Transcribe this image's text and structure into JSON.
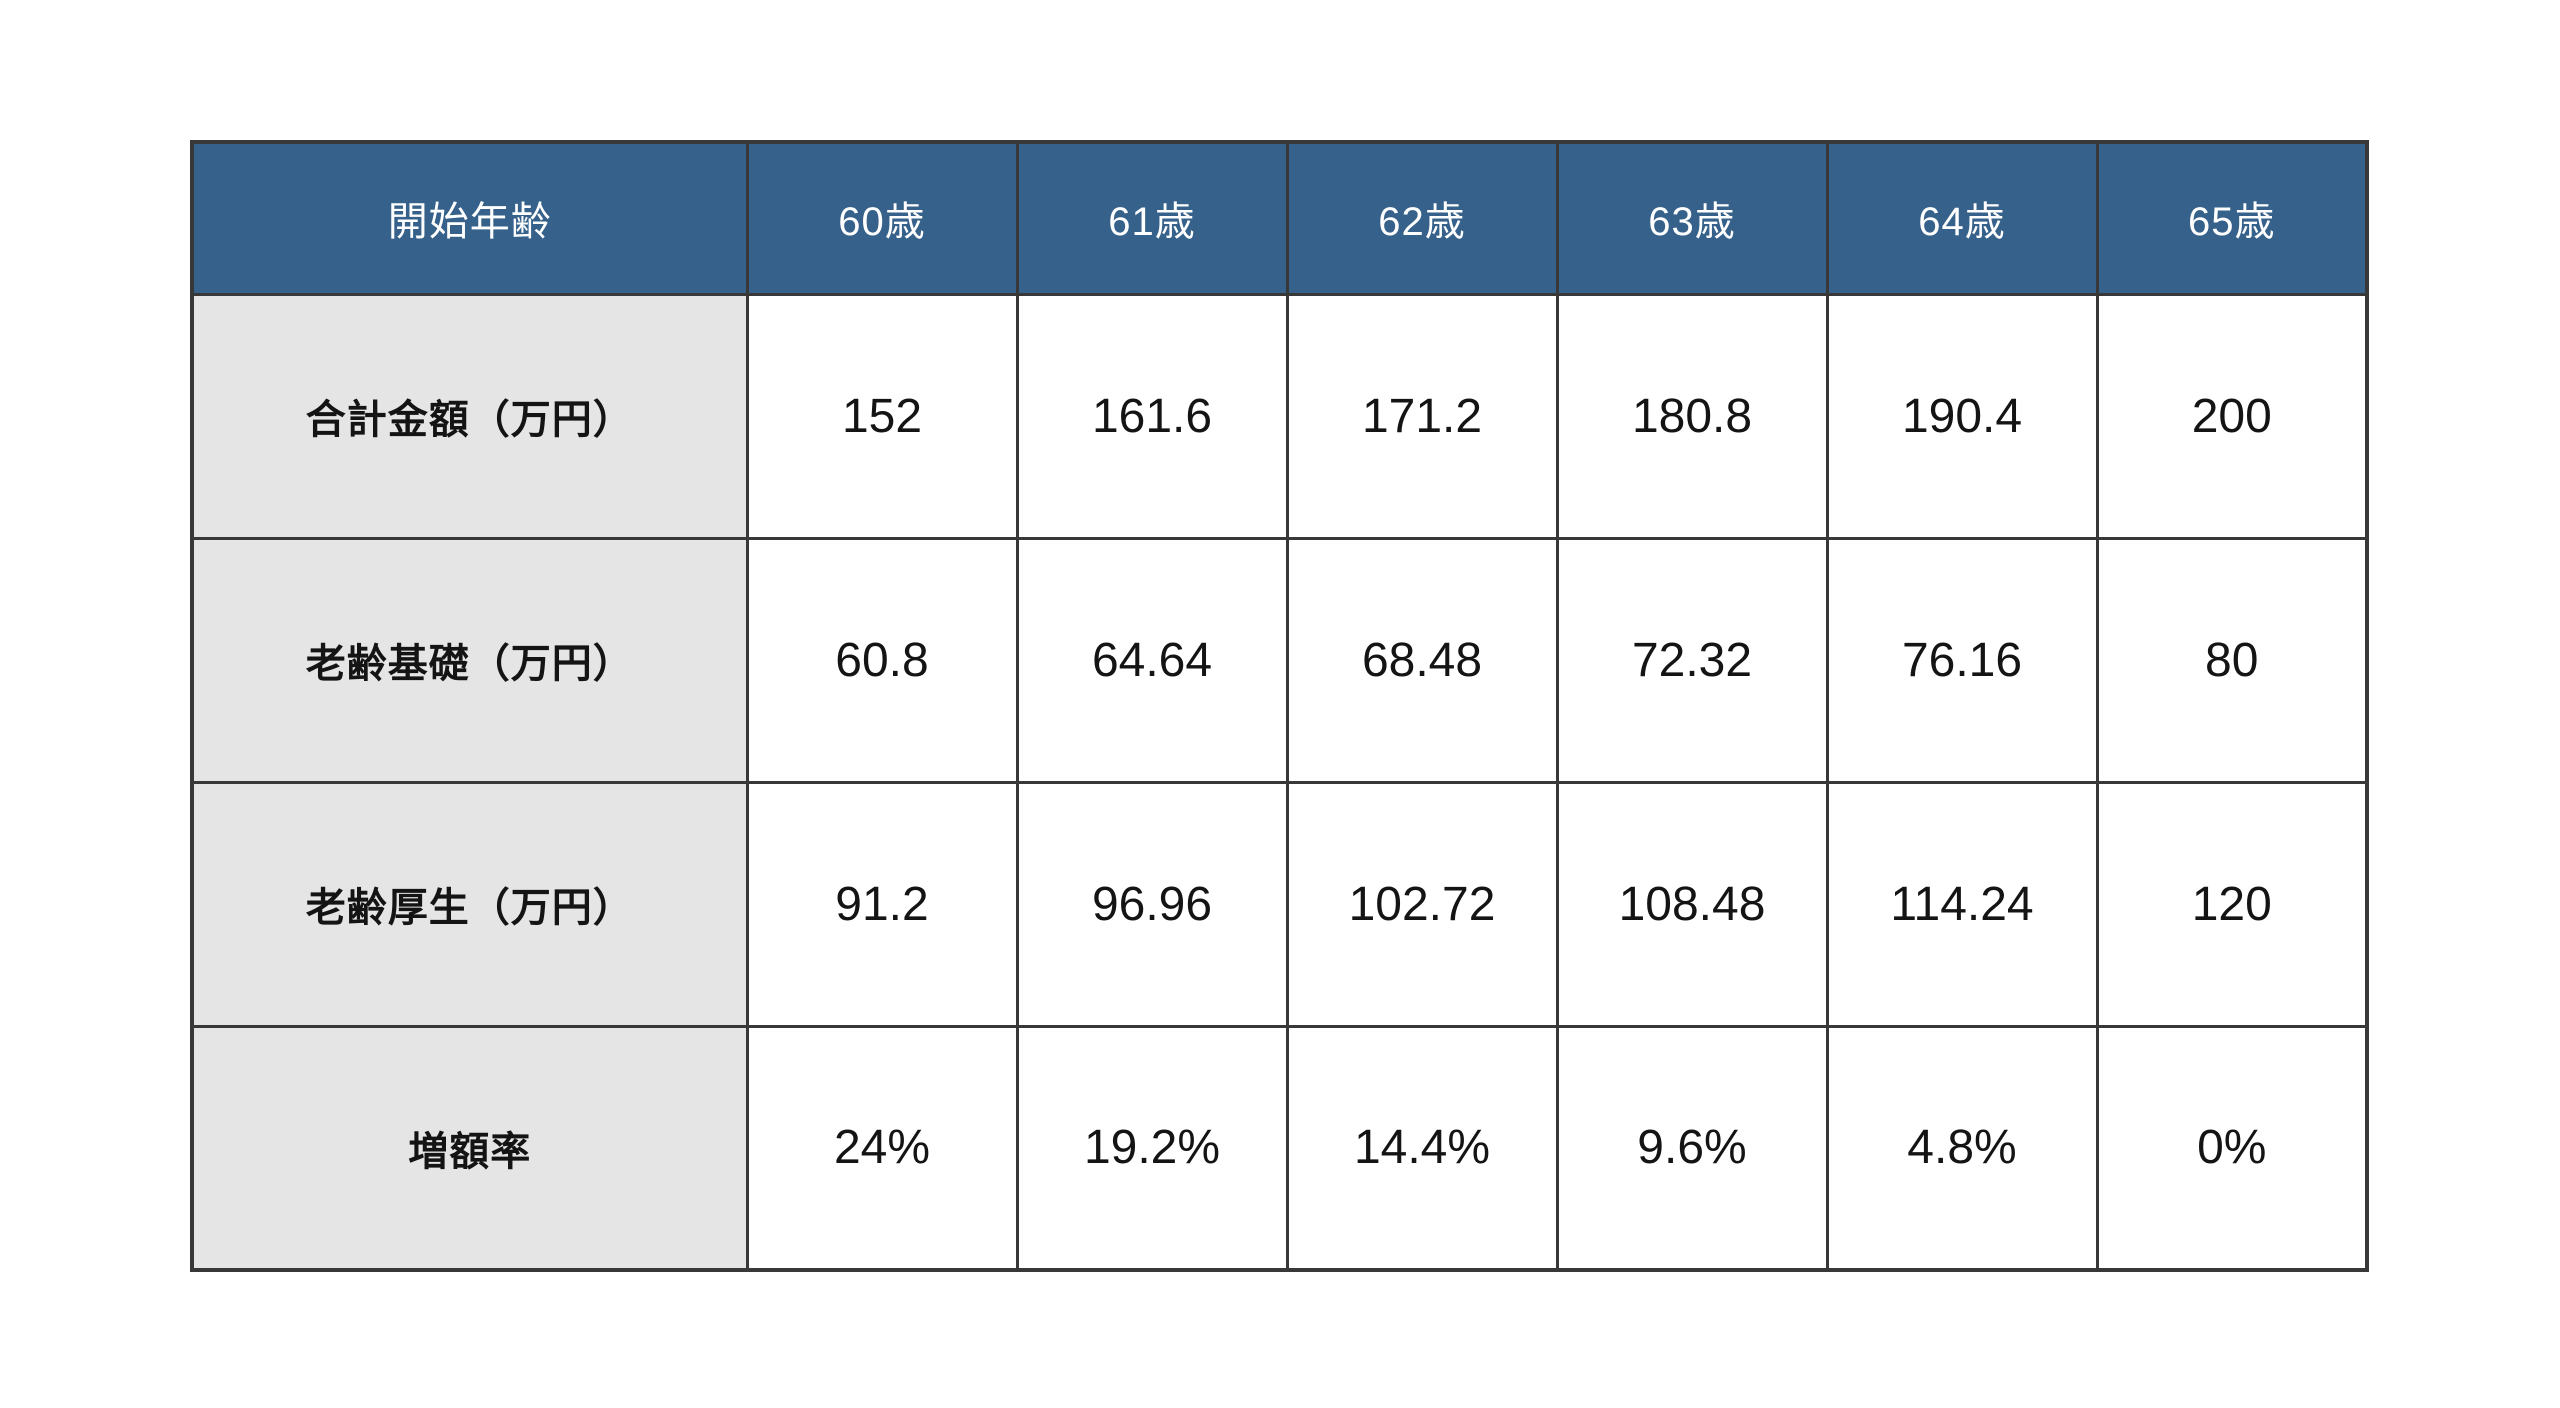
{
  "colors": {
    "header_bg": "#36618a",
    "header_text": "#ffffff",
    "label_bg": "#e5e5e5",
    "body_text": "#141414",
    "border": "#383838",
    "page_bg": "#ffffff"
  },
  "table": {
    "header": [
      "開始年齢",
      "60歳",
      "61歳",
      "62歳",
      "63歳",
      "64歳",
      "65歳"
    ],
    "rows": [
      {
        "label": "合計金額（万円）",
        "values": [
          "152",
          "161.6",
          "171.2",
          "180.8",
          "190.4",
          "200"
        ]
      },
      {
        "label": "老齢基礎（万円）",
        "values": [
          "60.8",
          "64.64",
          "68.48",
          "72.32",
          "76.16",
          "80"
        ]
      },
      {
        "label": "老齢厚生（万円）",
        "values": [
          "91.2",
          "96.96",
          "102.72",
          "108.48",
          "114.24",
          "120"
        ]
      },
      {
        "label": "増額率",
        "values": [
          "24%",
          "19.2%",
          "14.4%",
          "9.6%",
          "4.8%",
          "0%"
        ]
      }
    ]
  },
  "chart_data": {
    "type": "table",
    "title": "",
    "columns": [
      "開始年齢",
      "60歳",
      "61歳",
      "62歳",
      "63歳",
      "64歳",
      "65歳"
    ],
    "rows": [
      [
        "合計金額（万円）",
        152,
        161.6,
        171.2,
        180.8,
        190.4,
        200
      ],
      [
        "老齢基礎（万円）",
        60.8,
        64.64,
        68.48,
        72.32,
        76.16,
        80
      ],
      [
        "老齢厚生（万円）",
        91.2,
        96.96,
        102.72,
        108.48,
        114.24,
        120
      ],
      [
        "増額率",
        "24%",
        "19.2%",
        "14.4%",
        "9.6%",
        "4.8%",
        "0%"
      ]
    ],
    "layout_hints": {
      "header_fill": "#36618a",
      "label_column_fill": "#e5e5e5",
      "grid": true
    }
  }
}
